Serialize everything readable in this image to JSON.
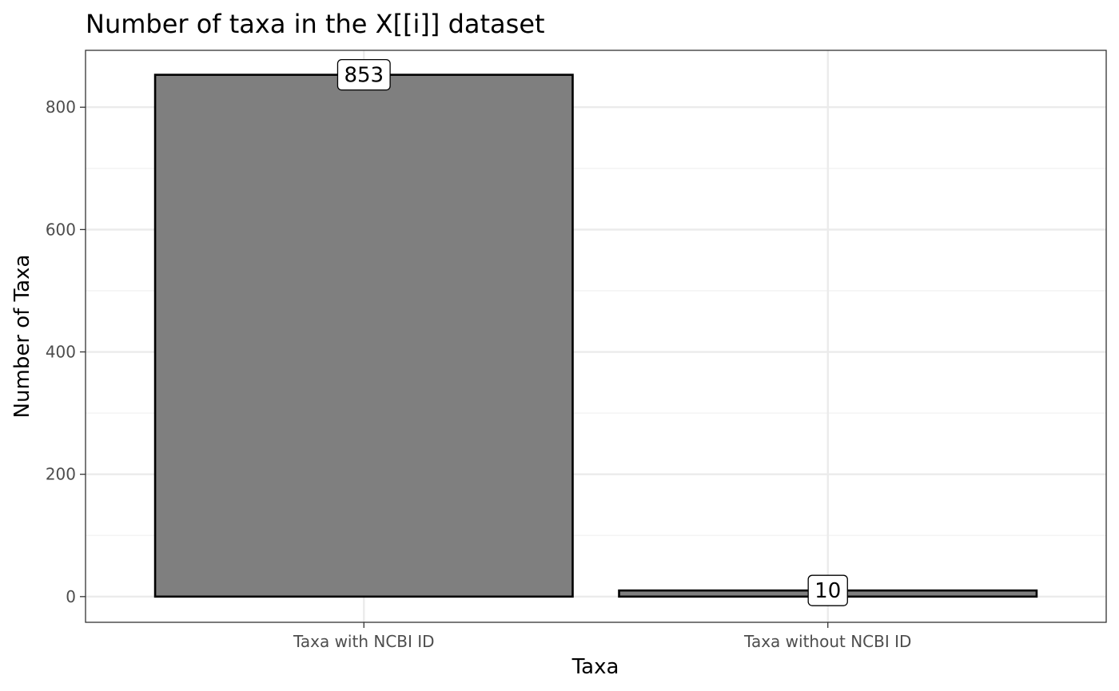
{
  "chart_data": {
    "type": "bar",
    "title": "Number of taxa in the X[[i]] dataset",
    "xlabel": "Taxa",
    "ylabel": "Number of Taxa",
    "categories": [
      "Taxa with NCBI ID",
      "Taxa without NCBI ID"
    ],
    "values": [
      853,
      10
    ],
    "data_labels": [
      "853",
      "10"
    ],
    "yticks": [
      0,
      200,
      400,
      600,
      800
    ],
    "ytick_labels": [
      "0",
      "200",
      "400",
      "600",
      "800"
    ],
    "ylim": [
      -42,
      893
    ],
    "grid": true,
    "legend": "none",
    "colors": {
      "bar_fill": "#7f7f7f",
      "bar_stroke": "#000000",
      "grid_major": "#ebebeb",
      "grid_minor": "#f2f2f2",
      "panel_border": "#333333",
      "label_fill": "#ffffff"
    }
  }
}
